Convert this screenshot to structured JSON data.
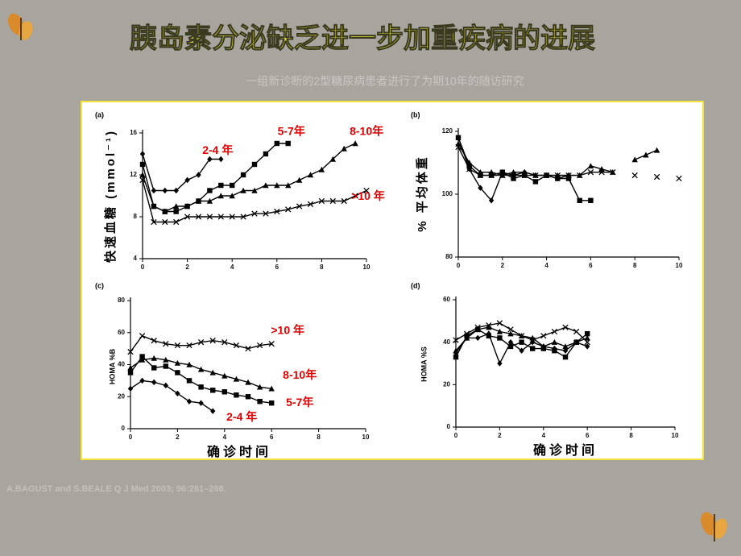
{
  "title": "胰岛素分泌缺乏进一步加重疾病的进展",
  "subtitle": "一组新诊断的2型糖尿病患者进行了为期10年的随访研究",
  "source": "A.BAGUST and S.BEALE  Q J Med 2003; 96:281–288.",
  "chart_data": [
    {
      "type": "line",
      "label": "(a)",
      "ylabel": "快速血糖 (mmol⁻¹)",
      "label_color": "#e00000",
      "x": [
        0,
        0.5,
        1,
        1.5,
        2,
        2.5,
        3,
        3.5,
        4,
        4.5,
        5,
        5.5,
        6,
        6.5,
        7,
        7.5,
        8,
        8.5,
        9,
        9.5,
        10
      ],
      "xlim": [
        0,
        10
      ],
      "xticks": [
        0,
        2,
        4,
        6,
        8,
        10
      ],
      "ylim": [
        4,
        16
      ],
      "yticks": [
        4,
        8,
        12,
        16
      ],
      "series": [
        {
          "name": "2-4 年",
          "color": "#000000",
          "marker": "diamond",
          "values": [
            14,
            10.5,
            10.5,
            10.5,
            11.5,
            12,
            13.5,
            13.5,
            null,
            null,
            null,
            null,
            null,
            null,
            null,
            null,
            null,
            null,
            null,
            null,
            null
          ]
        },
        {
          "name": "5-7年",
          "color": "#000000",
          "marker": "square",
          "values": [
            13,
            9,
            8.5,
            8.5,
            9,
            9.5,
            10.5,
            11,
            11,
            12,
            13,
            14,
            15,
            15,
            null,
            null,
            null,
            null,
            null,
            null,
            null
          ]
        },
        {
          "name": "8-10年",
          "color": "#000000",
          "marker": "triangle",
          "values": [
            12,
            9,
            8.5,
            9,
            9,
            9.5,
            9.5,
            10,
            10,
            10.5,
            10.5,
            11,
            11,
            11,
            11.5,
            12,
            12.5,
            13.5,
            14.5,
            15,
            null
          ]
        },
        {
          "name": ">10 年",
          "color": "#000000",
          "marker": "cross",
          "values": [
            11.5,
            7.5,
            7.5,
            7.5,
            8,
            8,
            8,
            8,
            8,
            8,
            8.3,
            8.3,
            8.5,
            8.7,
            9,
            9.2,
            9.5,
            9.5,
            9.5,
            10,
            10.5
          ]
        }
      ]
    },
    {
      "type": "line",
      "label": "(b)",
      "ylabel": "% 平均体重",
      "x": [
        0,
        0.5,
        1,
        1.5,
        2,
        2.5,
        3,
        3.5,
        4,
        4.5,
        5,
        5.5,
        6,
        6.5,
        7,
        7.5,
        8,
        8.5,
        9,
        9.5,
        10
      ],
      "xlim": [
        0,
        10
      ],
      "xticks": [
        0,
        2,
        4,
        6,
        8,
        10
      ],
      "ylim": [
        80,
        120
      ],
      "yticks": [
        80,
        100,
        120
      ],
      "series": [
        {
          "color": "#000000",
          "marker": "diamond",
          "values": [
            118,
            108,
            102,
            98,
            107,
            106,
            107,
            106,
            106,
            105,
            106,
            null,
            null,
            null,
            null,
            null,
            null,
            null,
            null,
            null,
            null
          ]
        },
        {
          "color": "#000000",
          "marker": "square",
          "values": [
            118,
            109,
            106,
            106,
            107,
            105,
            106,
            104,
            106,
            105,
            105,
            98,
            98,
            null,
            null,
            null,
            null,
            null,
            null,
            null,
            null
          ]
        },
        {
          "color": "#000000",
          "marker": "triangle",
          "values": [
            116,
            110,
            107,
            107,
            106,
            107,
            107,
            106,
            106,
            106,
            106,
            106,
            109,
            108,
            107,
            null,
            111,
            112.5,
            114,
            null,
            null
          ]
        },
        {
          "color": "#000000",
          "marker": "cross",
          "values": [
            115,
            108,
            106,
            106,
            106,
            106,
            106,
            106,
            106,
            106,
            106,
            106,
            107,
            107,
            107,
            null,
            106,
            null,
            105.5,
            null,
            105
          ]
        }
      ]
    },
    {
      "type": "line",
      "label": "(c)",
      "ylabel": "HOMA %B",
      "xlabel": "确诊时间",
      "label_color": "#e00000",
      "x": [
        0,
        0.5,
        1,
        1.5,
        2,
        2.5,
        3,
        3.5,
        4,
        4.5,
        5,
        5.5,
        6
      ],
      "xlim": [
        0,
        10
      ],
      "xticks": [
        0,
        2,
        4,
        6,
        8,
        10
      ],
      "ylim": [
        0,
        80
      ],
      "yticks": [
        0,
        20,
        40,
        60,
        80
      ],
      "series": [
        {
          "name": ">10 年",
          "color": "#000000",
          "marker": "cross",
          "values": [
            48,
            58,
            55,
            53,
            52,
            52,
            54,
            55,
            54,
            52,
            50,
            52,
            53
          ]
        },
        {
          "name": "8-10年",
          "color": "#000000",
          "marker": "triangle",
          "values": [
            38,
            43,
            44,
            43,
            41,
            40,
            37,
            35,
            33,
            31,
            29,
            26,
            25
          ]
        },
        {
          "name": "5-7年",
          "color": "#000000",
          "marker": "square",
          "values": [
            35,
            45,
            38,
            39,
            35,
            30,
            26,
            24,
            23,
            21,
            20,
            17,
            16
          ]
        },
        {
          "name": "2-4 年",
          "color": "#000000",
          "marker": "diamond",
          "values": [
            25,
            30,
            29,
            27,
            22,
            17,
            16,
            11,
            null,
            null,
            null,
            null,
            null
          ]
        }
      ]
    },
    {
      "type": "line",
      "label": "(d)",
      "ylabel": "HOMA %S",
      "xlabel": "确诊时间",
      "x": [
        0,
        0.5,
        1,
        1.5,
        2,
        2.5,
        3,
        3.5,
        4,
        4.5,
        5,
        5.5,
        6
      ],
      "xlim": [
        0,
        10
      ],
      "xticks": [
        0,
        2,
        4,
        6,
        8,
        10
      ],
      "ylim": [
        0,
        60
      ],
      "yticks": [
        0,
        20,
        40,
        60
      ],
      "series": [
        {
          "color": "#000000",
          "marker": "diamond",
          "values": [
            35,
            42,
            42,
            44,
            30,
            40,
            36,
            40,
            38,
            37,
            36,
            40,
            38
          ]
        },
        {
          "color": "#000000",
          "marker": "square",
          "values": [
            33,
            43,
            46,
            43,
            42,
            38,
            40,
            37,
            37,
            36,
            33,
            40,
            44
          ]
        },
        {
          "color": "#000000",
          "marker": "triangle",
          "values": [
            36,
            42,
            46,
            47,
            45,
            44,
            43,
            42,
            38,
            40,
            38,
            40,
            42
          ]
        },
        {
          "color": "#000000",
          "marker": "cross",
          "values": [
            41,
            44,
            47,
            48,
            49,
            46,
            43,
            41,
            43,
            45,
            47,
            45,
            40
          ]
        }
      ]
    }
  ]
}
